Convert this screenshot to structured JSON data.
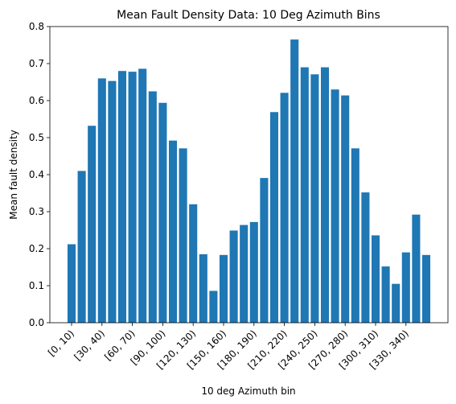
{
  "chart_data": {
    "type": "bar",
    "title": "Mean Fault Density Data: 10 Deg Azimuth Bins",
    "xlabel": "10 deg Azimuth bin",
    "ylabel": "Mean fault density",
    "ylim": [
      0,
      0.8
    ],
    "yticks": [
      "0.0",
      "0.1",
      "0.2",
      "0.3",
      "0.4",
      "0.5",
      "0.6",
      "0.7",
      "0.8"
    ],
    "categories": [
      "[0, 10)",
      "[10, 20)",
      "[20, 30)",
      "[30, 40)",
      "[40, 50)",
      "[50, 60)",
      "[60, 70)",
      "[70, 80)",
      "[80, 90)",
      "[90, 100)",
      "[100, 110)",
      "[110, 120)",
      "[120, 130)",
      "[130, 140)",
      "[140, 150)",
      "[150, 160)",
      "[160, 170)",
      "[170, 180)",
      "[180, 190)",
      "[190, 200)",
      "[200, 210)",
      "[210, 220)",
      "[220, 230)",
      "[230, 240)",
      "[240, 250)",
      "[250, 260)",
      "[260, 270)",
      "[270, 280)",
      "[280, 290)",
      "[290, 300)",
      "[300, 310)",
      "[310, 320)",
      "[320, 330)",
      "[330, 340)",
      "[340, 350)",
      "[350, 360)"
    ],
    "xtick_labels": [
      "[0, 10)",
      "[30, 40)",
      "[60, 70)",
      "[90, 100)",
      "[120, 130)",
      "[150, 160)",
      "[180, 190)",
      "[210, 220)",
      "[240, 250)",
      "[270, 280)",
      "[300, 310)",
      "[330, 340)"
    ],
    "values": [
      0.212,
      0.41,
      0.532,
      0.66,
      0.653,
      0.68,
      0.678,
      0.686,
      0.625,
      0.594,
      0.492,
      0.471,
      0.32,
      0.185,
      0.086,
      0.183,
      0.249,
      0.264,
      0.272,
      0.391,
      0.569,
      0.621,
      0.765,
      0.69,
      0.671,
      0.69,
      0.63,
      0.614,
      0.471,
      0.352,
      0.236,
      0.152,
      0.105,
      0.19,
      0.292,
      0.183
    ],
    "bar_color": "#1f77b4",
    "grid": false,
    "legend": "none"
  }
}
